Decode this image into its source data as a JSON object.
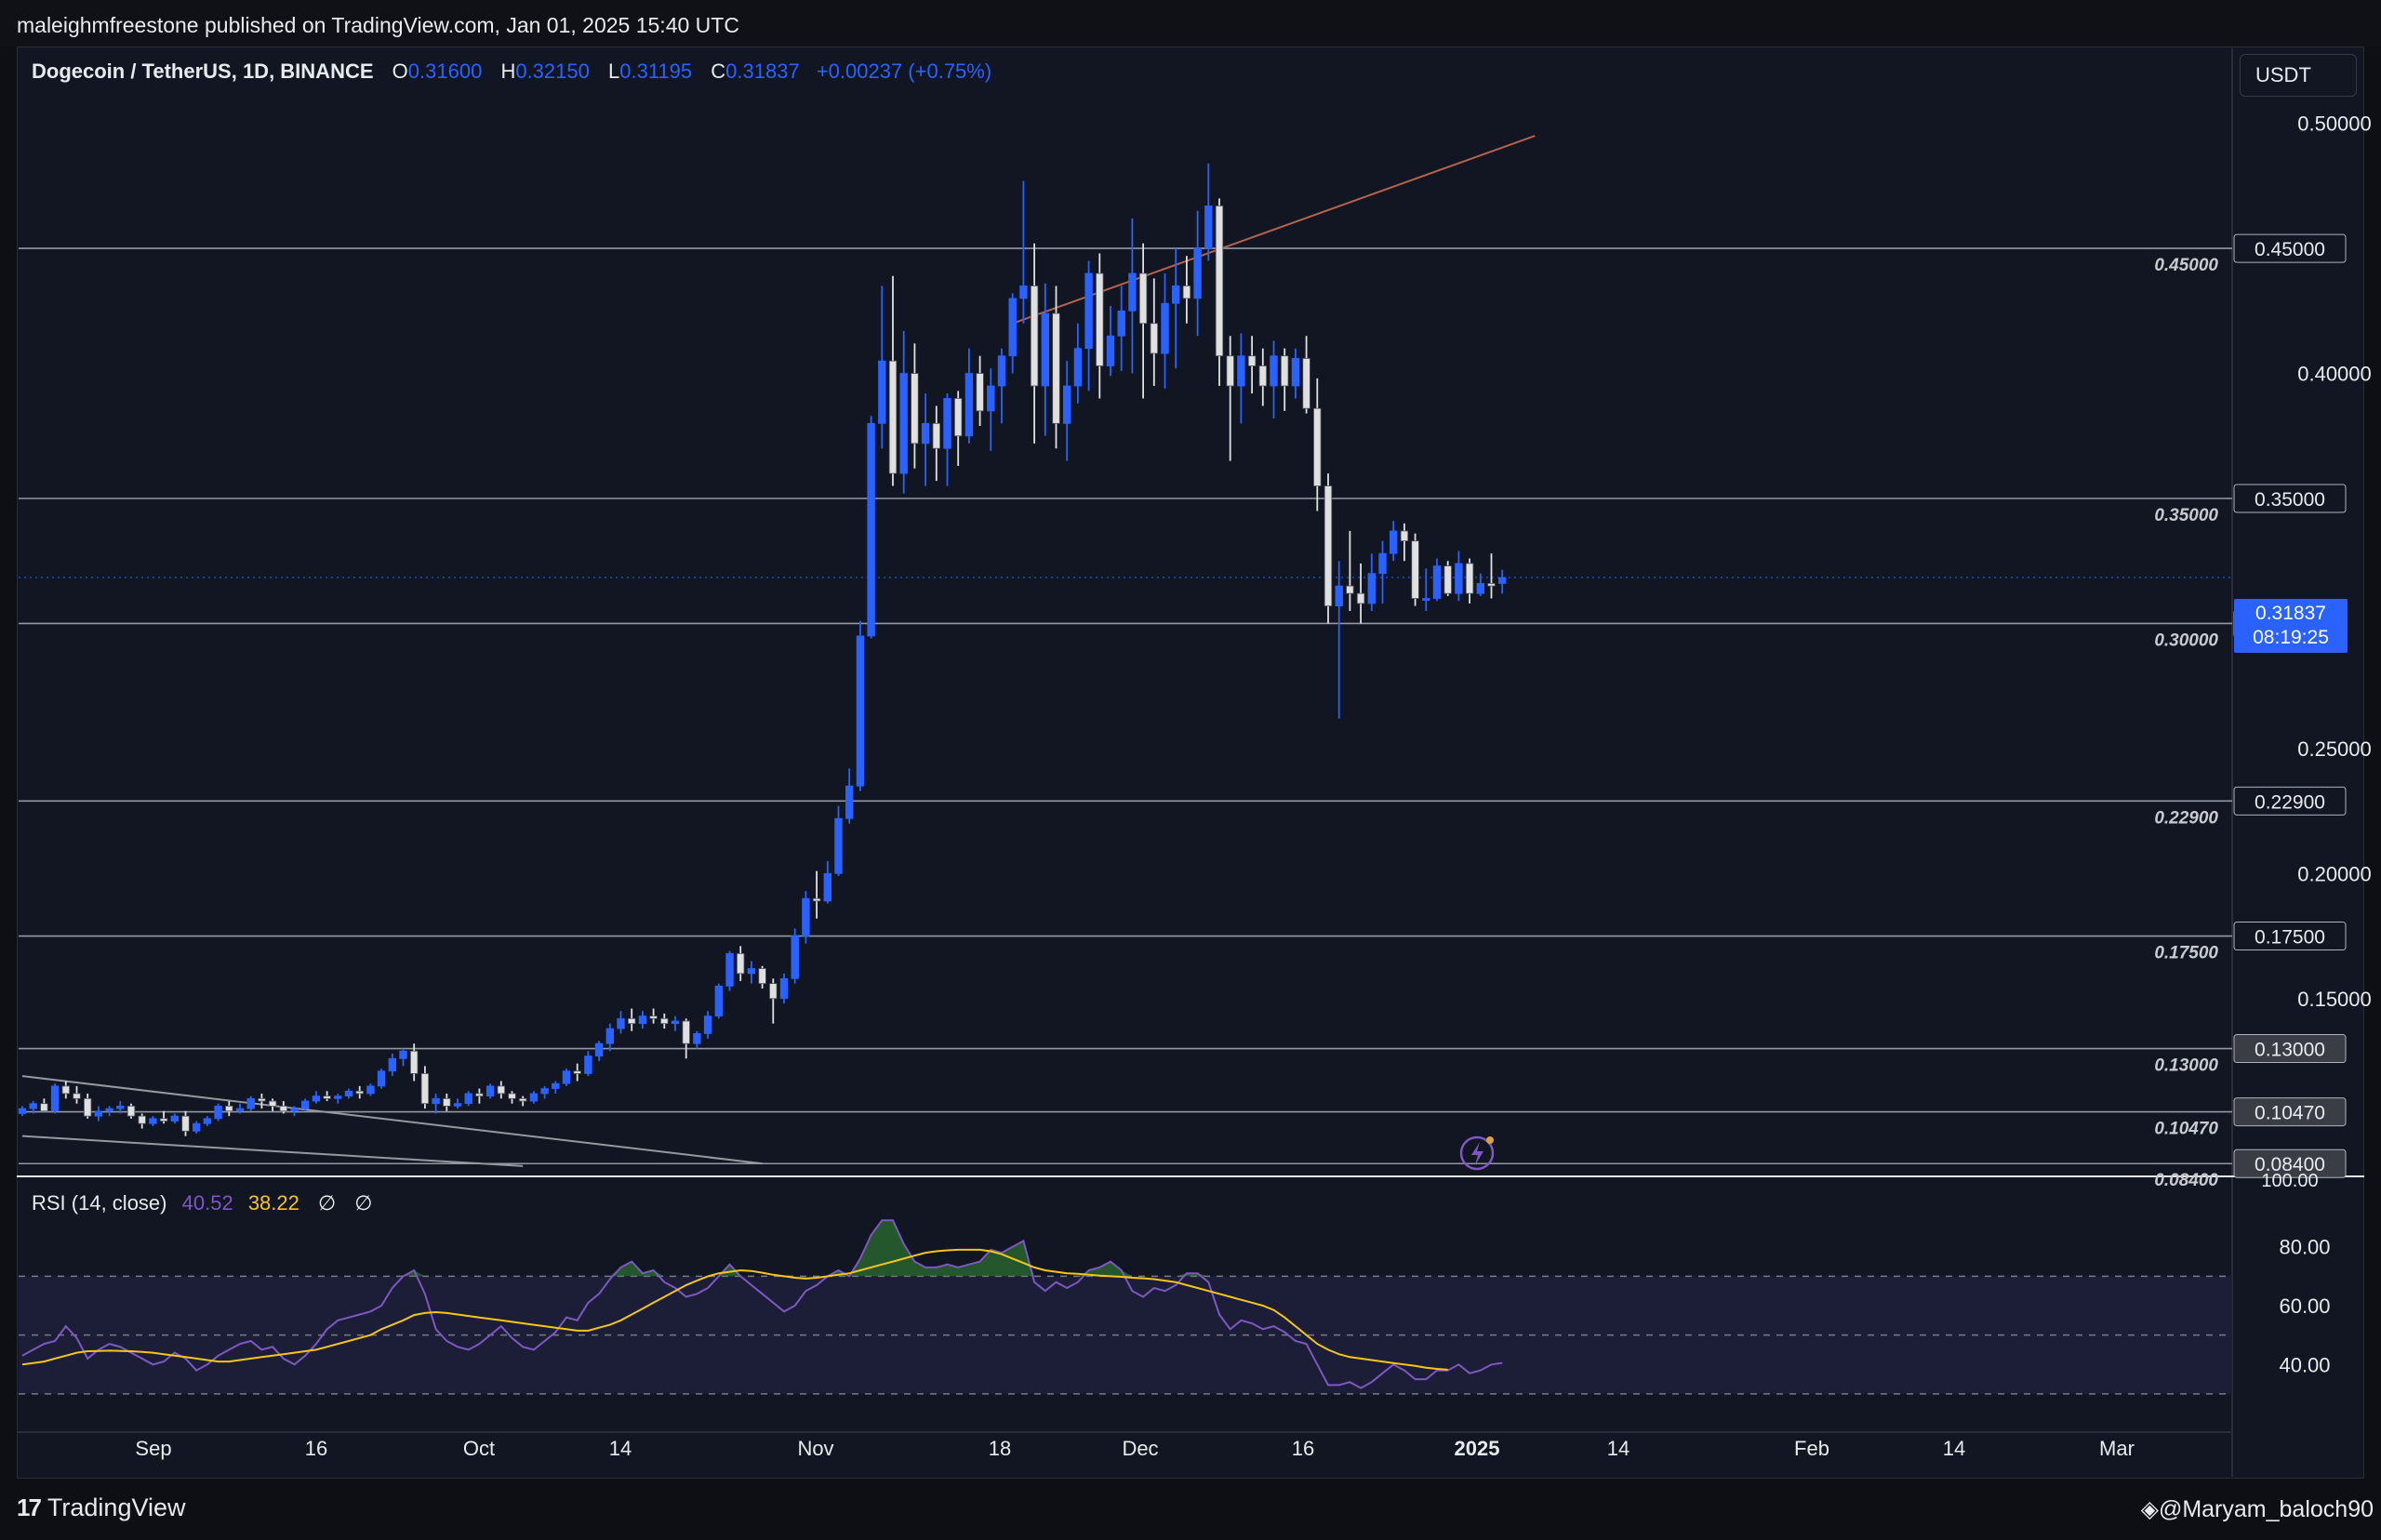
{
  "header": {
    "publisher": "maleighmfreestone published on TradingView.com, Jan 01, 2025 15:40 UTC"
  },
  "legend": {
    "symbol": "Dogecoin / TetherUS, 1D, BINANCE",
    "open_label": "O",
    "open": "0.31600",
    "high_label": "H",
    "high": "0.32150",
    "low_label": "L",
    "low": "0.31195",
    "close_label": "C",
    "close": "0.31837",
    "change": "+0.00237 (+0.75%)"
  },
  "currency_button": "USDT",
  "current_price": {
    "value": "0.31837",
    "countdown": "08:19:25"
  },
  "rsi_legend": {
    "label": "RSI (14, close)",
    "rsi_value": "40.52",
    "ma_value": "38.22",
    "null1": "∅",
    "null2": "∅"
  },
  "footer": {
    "brand": "TradingView",
    "handle": "@Maryam_baloch90"
  },
  "colors": {
    "background": "#121622",
    "bull": "#2962ff",
    "bear": "#e0e0e0",
    "rsi_line": "#7e57c2",
    "rsi_ma": "#f5c518",
    "trendline": "#b5634d"
  },
  "chart_data": [
    {
      "type": "candlestick",
      "symbol": "DOGEUSDT",
      "timeframe": "1D",
      "exchange": "BINANCE",
      "ylim": [
        0.08,
        0.53
      ],
      "x_ticks": [
        "Sep",
        "16",
        "Oct",
        "14",
        "Nov",
        "18",
        "Dec",
        "16",
        "2025",
        "14",
        "Feb",
        "14",
        "Mar"
      ],
      "y_axis_labels": [
        "0.50000",
        "0.40000",
        "0.25000",
        "0.20000",
        "0.15000",
        "100.00"
      ],
      "candles": [
        [
          0.104,
          0.107,
          0.103,
          0.106
        ],
        [
          0.106,
          0.109,
          0.104,
          0.108
        ],
        [
          0.108,
          0.11,
          0.105,
          0.105
        ],
        [
          0.105,
          0.116,
          0.104,
          0.115
        ],
        [
          0.115,
          0.117,
          0.11,
          0.112
        ],
        [
          0.112,
          0.115,
          0.108,
          0.11
        ],
        [
          0.11,
          0.112,
          0.102,
          0.103
        ],
        [
          0.103,
          0.107,
          0.101,
          0.105
        ],
        [
          0.105,
          0.107,
          0.103,
          0.106
        ],
        [
          0.106,
          0.109,
          0.104,
          0.107
        ],
        [
          0.107,
          0.108,
          0.102,
          0.103
        ],
        [
          0.103,
          0.104,
          0.098,
          0.1
        ],
        [
          0.1,
          0.103,
          0.099,
          0.102
        ],
        [
          0.102,
          0.105,
          0.1,
          0.101
        ],
        [
          0.101,
          0.104,
          0.1,
          0.103
        ],
        [
          0.103,
          0.105,
          0.095,
          0.097
        ],
        [
          0.097,
          0.101,
          0.096,
          0.1
        ],
        [
          0.1,
          0.103,
          0.099,
          0.102
        ],
        [
          0.102,
          0.108,
          0.101,
          0.107
        ],
        [
          0.107,
          0.109,
          0.103,
          0.105
        ],
        [
          0.105,
          0.108,
          0.104,
          0.106
        ],
        [
          0.106,
          0.111,
          0.105,
          0.11
        ],
        [
          0.11,
          0.112,
          0.106,
          0.109
        ],
        [
          0.109,
          0.11,
          0.105,
          0.107
        ],
        [
          0.107,
          0.109,
          0.104,
          0.105
        ],
        [
          0.105,
          0.107,
          0.103,
          0.106
        ],
        [
          0.106,
          0.11,
          0.105,
          0.109
        ],
        [
          0.109,
          0.113,
          0.108,
          0.111
        ],
        [
          0.111,
          0.113,
          0.109,
          0.11
        ],
        [
          0.11,
          0.112,
          0.108,
          0.111
        ],
        [
          0.111,
          0.114,
          0.11,
          0.113
        ],
        [
          0.113,
          0.115,
          0.11,
          0.112
        ],
        [
          0.112,
          0.116,
          0.111,
          0.115
        ],
        [
          0.115,
          0.122,
          0.114,
          0.121
        ],
        [
          0.121,
          0.128,
          0.119,
          0.126
        ],
        [
          0.126,
          0.13,
          0.123,
          0.129
        ],
        [
          0.129,
          0.132,
          0.117,
          0.12
        ],
        [
          0.12,
          0.123,
          0.106,
          0.108
        ],
        [
          0.108,
          0.112,
          0.104,
          0.11
        ],
        [
          0.11,
          0.112,
          0.105,
          0.107
        ],
        [
          0.107,
          0.11,
          0.106,
          0.108
        ],
        [
          0.108,
          0.113,
          0.107,
          0.112
        ],
        [
          0.112,
          0.114,
          0.108,
          0.111
        ],
        [
          0.111,
          0.116,
          0.11,
          0.115
        ],
        [
          0.115,
          0.117,
          0.11,
          0.112
        ],
        [
          0.112,
          0.113,
          0.108,
          0.11
        ],
        [
          0.11,
          0.111,
          0.107,
          0.109
        ],
        [
          0.109,
          0.113,
          0.108,
          0.112
        ],
        [
          0.112,
          0.115,
          0.11,
          0.114
        ],
        [
          0.114,
          0.117,
          0.112,
          0.116
        ],
        [
          0.116,
          0.122,
          0.115,
          0.121
        ],
        [
          0.121,
          0.124,
          0.117,
          0.12
        ],
        [
          0.12,
          0.129,
          0.119,
          0.127
        ],
        [
          0.127,
          0.133,
          0.125,
          0.132
        ],
        [
          0.132,
          0.14,
          0.129,
          0.138
        ],
        [
          0.138,
          0.145,
          0.136,
          0.142
        ],
        [
          0.142,
          0.146,
          0.137,
          0.14
        ],
        [
          0.14,
          0.145,
          0.138,
          0.143
        ],
        [
          0.143,
          0.146,
          0.14,
          0.142
        ],
        [
          0.142,
          0.144,
          0.138,
          0.14
        ],
        [
          0.14,
          0.143,
          0.137,
          0.141
        ],
        [
          0.141,
          0.142,
          0.126,
          0.132
        ],
        [
          0.132,
          0.137,
          0.13,
          0.136
        ],
        [
          0.136,
          0.145,
          0.134,
          0.143
        ],
        [
          0.143,
          0.156,
          0.142,
          0.155
        ],
        [
          0.155,
          0.169,
          0.153,
          0.168
        ],
        [
          0.168,
          0.171,
          0.157,
          0.16
        ],
        [
          0.16,
          0.165,
          0.156,
          0.162
        ],
        [
          0.162,
          0.163,
          0.154,
          0.156
        ],
        [
          0.156,
          0.158,
          0.14,
          0.15
        ],
        [
          0.15,
          0.16,
          0.148,
          0.158
        ],
        [
          0.158,
          0.178,
          0.156,
          0.175
        ],
        [
          0.175,
          0.193,
          0.172,
          0.19
        ],
        [
          0.19,
          0.201,
          0.182,
          0.189
        ],
        [
          0.189,
          0.205,
          0.188,
          0.2
        ],
        [
          0.2,
          0.227,
          0.199,
          0.222
        ],
        [
          0.222,
          0.242,
          0.22,
          0.235
        ],
        [
          0.235,
          0.301,
          0.233,
          0.295
        ],
        [
          0.295,
          0.383,
          0.294,
          0.38
        ],
        [
          0.38,
          0.435,
          0.37,
          0.405
        ],
        [
          0.405,
          0.439,
          0.355,
          0.36
        ],
        [
          0.36,
          0.417,
          0.352,
          0.4
        ],
        [
          0.4,
          0.412,
          0.362,
          0.372
        ],
        [
          0.372,
          0.392,
          0.355,
          0.38
        ],
        [
          0.38,
          0.387,
          0.357,
          0.37
        ],
        [
          0.37,
          0.392,
          0.355,
          0.39
        ],
        [
          0.39,
          0.393,
          0.363,
          0.375
        ],
        [
          0.375,
          0.41,
          0.372,
          0.4
        ],
        [
          0.4,
          0.407,
          0.379,
          0.385
        ],
        [
          0.385,
          0.402,
          0.369,
          0.395
        ],
        [
          0.395,
          0.41,
          0.38,
          0.407
        ],
        [
          0.407,
          0.432,
          0.4,
          0.43
        ],
        [
          0.43,
          0.477,
          0.42,
          0.435
        ],
        [
          0.435,
          0.452,
          0.372,
          0.395
        ],
        [
          0.395,
          0.436,
          0.375,
          0.424
        ],
        [
          0.424,
          0.435,
          0.37,
          0.38
        ],
        [
          0.38,
          0.405,
          0.365,
          0.395
        ],
        [
          0.395,
          0.42,
          0.388,
          0.41
        ],
        [
          0.41,
          0.445,
          0.393,
          0.44
        ],
        [
          0.44,
          0.448,
          0.39,
          0.403
        ],
        [
          0.403,
          0.427,
          0.399,
          0.415
        ],
        [
          0.415,
          0.435,
          0.401,
          0.425
        ],
        [
          0.425,
          0.462,
          0.4,
          0.44
        ],
        [
          0.44,
          0.452,
          0.39,
          0.42
        ],
        [
          0.42,
          0.438,
          0.395,
          0.408
        ],
        [
          0.408,
          0.44,
          0.394,
          0.428
        ],
        [
          0.428,
          0.45,
          0.402,
          0.435
        ],
        [
          0.435,
          0.447,
          0.42,
          0.43
        ],
        [
          0.43,
          0.465,
          0.415,
          0.45
        ],
        [
          0.45,
          0.484,
          0.445,
          0.467
        ],
        [
          0.467,
          0.47,
          0.395,
          0.407
        ],
        [
          0.407,
          0.415,
          0.365,
          0.395
        ],
        [
          0.395,
          0.416,
          0.38,
          0.407
        ],
        [
          0.407,
          0.415,
          0.392,
          0.403
        ],
        [
          0.403,
          0.41,
          0.387,
          0.395
        ],
        [
          0.395,
          0.413,
          0.382,
          0.407
        ],
        [
          0.407,
          0.41,
          0.385,
          0.395
        ],
        [
          0.395,
          0.41,
          0.39,
          0.406
        ],
        [
          0.406,
          0.415,
          0.384,
          0.386
        ],
        [
          0.386,
          0.398,
          0.345,
          0.355
        ],
        [
          0.355,
          0.36,
          0.3,
          0.307
        ],
        [
          0.307,
          0.325,
          0.262,
          0.315
        ],
        [
          0.315,
          0.337,
          0.305,
          0.312
        ],
        [
          0.312,
          0.324,
          0.3,
          0.308
        ],
        [
          0.308,
          0.328,
          0.305,
          0.32
        ],
        [
          0.32,
          0.333,
          0.308,
          0.328
        ],
        [
          0.328,
          0.341,
          0.325,
          0.337
        ],
        [
          0.337,
          0.34,
          0.325,
          0.333
        ],
        [
          0.333,
          0.336,
          0.307,
          0.31
        ],
        [
          0.31,
          0.322,
          0.305,
          0.31
        ],
        [
          0.31,
          0.326,
          0.309,
          0.323
        ],
        [
          0.323,
          0.325,
          0.311,
          0.312
        ],
        [
          0.312,
          0.329,
          0.309,
          0.324
        ],
        [
          0.324,
          0.326,
          0.308,
          0.312
        ],
        [
          0.312,
          0.32,
          0.311,
          0.316
        ],
        [
          0.316,
          0.328,
          0.31,
          0.315
        ],
        [
          0.316,
          0.3215,
          0.31195,
          0.31837
        ]
      ],
      "horizontal_levels": [
        "0.45000",
        "0.35000",
        "0.30000",
        "0.22900",
        "0.17500",
        "0.13000",
        "0.10470",
        "0.08400"
      ],
      "trendlines": [
        {
          "name": "resistance",
          "from": [
            91,
            0.42
          ],
          "to": [
            139,
            0.495
          ]
        },
        {
          "name": "wedge-upper",
          "from": [
            0,
            0.119
          ],
          "to": [
            68,
            0.084
          ]
        },
        {
          "name": "wedge-lower",
          "from": [
            0,
            0.095
          ],
          "to": [
            46,
            0.083
          ]
        }
      ]
    },
    {
      "type": "line",
      "name": "RSI (14, close)",
      "ylim": [
        17,
        103
      ],
      "levels": [
        70,
        50,
        30
      ],
      "y_axis_labels": [
        "80.00",
        "60.00",
        "40.00"
      ],
      "series": [
        {
          "name": "RSI",
          "values": [
            43,
            45,
            47,
            48,
            53,
            49,
            42,
            45,
            47,
            46,
            44,
            42,
            40,
            41,
            44,
            42,
            38,
            40,
            43,
            45,
            47,
            48,
            45,
            46,
            42,
            40,
            43,
            47,
            52,
            55,
            56,
            57,
            58,
            60,
            66,
            70,
            72,
            64,
            52,
            48,
            46,
            45,
            47,
            50,
            53,
            49,
            46,
            45,
            48,
            51,
            56,
            55,
            61,
            64,
            69,
            73,
            75,
            71,
            72,
            68,
            66,
            63,
            64,
            66,
            70,
            74,
            70,
            67,
            64,
            61,
            58,
            60,
            65,
            67,
            70,
            72,
            70,
            76,
            84,
            89,
            89,
            81,
            75,
            73,
            73,
            74,
            73,
            74,
            75,
            79,
            78,
            80,
            82,
            68,
            65,
            68,
            66,
            68,
            72,
            73,
            75,
            72,
            65,
            63,
            66,
            65,
            67,
            71,
            71,
            68,
            57,
            52,
            55,
            54,
            52,
            53,
            51,
            48,
            47,
            40,
            33,
            33,
            34,
            32,
            34,
            37,
            40,
            38,
            35,
            35,
            38,
            38,
            40,
            37,
            38,
            40,
            40.52
          ]
        },
        {
          "name": "RSI MA",
          "values": [
            40,
            40.5,
            41,
            42,
            43,
            44,
            44.5,
            44.6,
            44.7,
            44.6,
            44.5,
            44.3,
            44.0,
            43.5,
            43.0,
            42.5,
            42.0,
            41.5,
            41.0,
            41.0,
            41.5,
            42,
            42.5,
            43,
            43.5,
            44,
            44.5,
            45,
            46,
            47,
            48,
            49,
            50,
            52,
            53.5,
            55,
            56.8,
            57.5,
            57.8,
            57.5,
            57.0,
            56.5,
            56,
            55.5,
            55,
            54.5,
            54,
            53.5,
            53,
            52.5,
            52,
            51.5,
            51.5,
            52.5,
            53.5,
            55,
            57,
            59,
            61,
            63,
            65,
            67,
            68.5,
            70,
            71,
            71.5,
            72,
            71.8,
            71.2,
            70.5,
            70,
            69.5,
            69.2,
            69.5,
            70,
            70.5,
            71,
            72,
            73,
            74,
            75,
            76,
            77,
            78,
            78.5,
            78.8,
            79,
            79,
            79,
            78.5,
            77.5,
            76,
            74.5,
            73,
            72,
            71.5,
            71,
            70.8,
            70.5,
            70.2,
            70,
            69.8,
            69.5,
            69.3,
            69,
            68.5,
            68,
            67,
            66,
            65,
            64,
            63,
            62,
            61,
            60,
            58.5,
            56,
            53,
            50,
            47,
            45,
            43.5,
            42.5,
            42,
            41.5,
            41,
            40.5,
            40,
            39.5,
            38.9,
            38.5,
            38.22
          ]
        }
      ]
    }
  ]
}
